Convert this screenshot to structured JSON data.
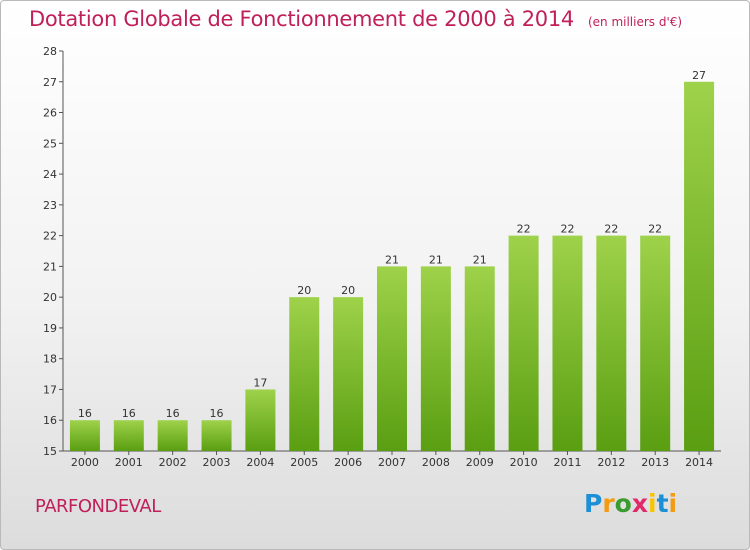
{
  "chart_data": {
    "type": "bar",
    "title": "Dotation Globale de Fonctionnement de 2000 à 2014",
    "subtitle": "(en milliers d'€)",
    "categories": [
      "2000",
      "2001",
      "2002",
      "2003",
      "2004",
      "2005",
      "2006",
      "2007",
      "2008",
      "2009",
      "2010",
      "2011",
      "2012",
      "2013",
      "2014"
    ],
    "values": [
      16,
      16,
      16,
      16,
      17,
      20,
      20,
      21,
      21,
      21,
      22,
      22,
      22,
      22,
      27
    ],
    "ylim": [
      15,
      28
    ],
    "yticks": [
      15,
      16,
      17,
      18,
      19,
      20,
      21,
      22,
      23,
      24,
      25,
      26,
      27,
      28
    ],
    "grid": false,
    "bar_color_top": "#9ed24a",
    "bar_color_bottom": "#5a9e12"
  },
  "footer": {
    "commune": "PARFONDEVAL",
    "logo_letters": [
      "P",
      "r",
      "o",
      "x",
      "i",
      "t",
      "i"
    ],
    "logo_colors": [
      "#1c8fd6",
      "#f39c12",
      "#3a9b2e",
      "#e02a6a",
      "#f7c500",
      "#1c8fd6",
      "#f39c12"
    ]
  },
  "colors": {
    "accent": "#c0205a"
  }
}
